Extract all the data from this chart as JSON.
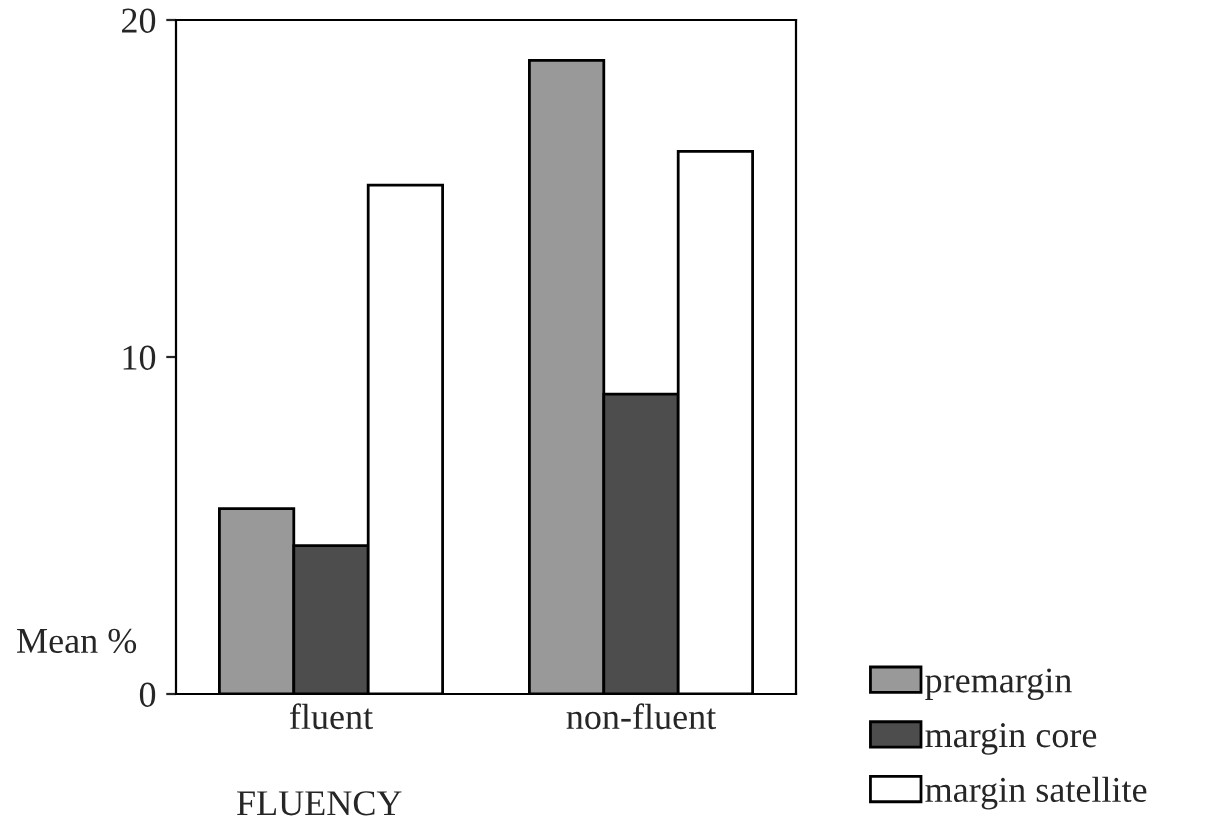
{
  "chart_data": {
    "type": "bar",
    "xlabel": "FLUENCY",
    "ylabel": "Mean %",
    "categories": [
      "fluent",
      "non-fluent"
    ],
    "series": [
      {
        "name": "premargin",
        "color": "#999999",
        "values": [
          5.5,
          18.8
        ]
      },
      {
        "name": "margin core",
        "color": "#4d4d4d",
        "values": [
          4.4,
          8.9
        ]
      },
      {
        "name": "margin satellite",
        "color": "#ffffff",
        "values": [
          15.1,
          16.1
        ]
      }
    ],
    "ylim": [
      0,
      20
    ],
    "yticks": [
      0,
      10,
      20
    ],
    "grid": false,
    "legend": "bottom right"
  }
}
